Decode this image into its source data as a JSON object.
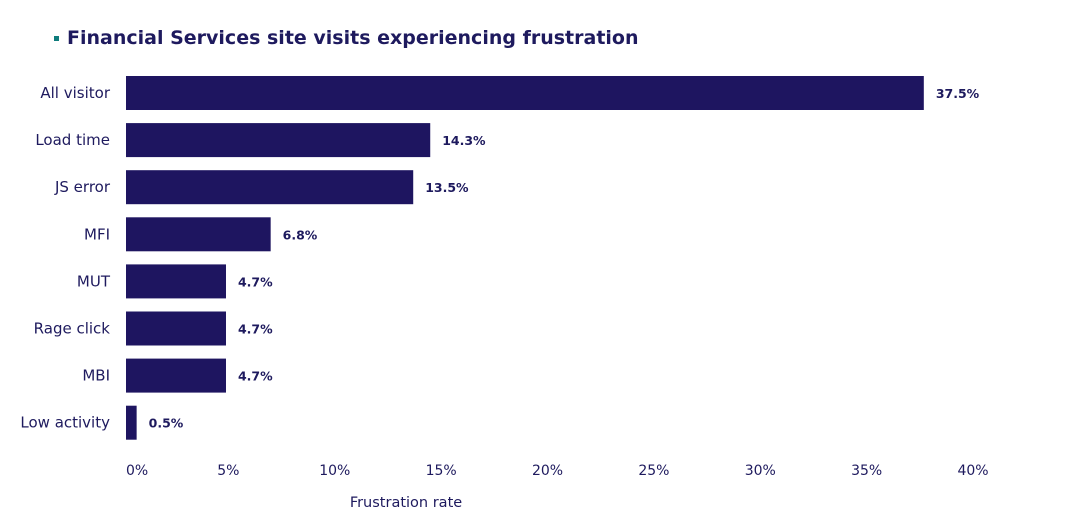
{
  "chart_data": {
    "type": "bar",
    "orientation": "horizontal",
    "title": "Financial Services site visits experiencing frustration",
    "categories": [
      "All visitor",
      "Load time",
      "JS error",
      "MFI",
      "MUT",
      "Rage click",
      "MBI",
      "Low activity"
    ],
    "values": [
      37.5,
      14.3,
      13.5,
      6.8,
      4.7,
      4.7,
      4.7,
      0.5
    ],
    "data_labels": [
      "37.5%",
      "14.3%",
      "13.5%",
      "6.8%",
      "4.7%",
      "4.7%",
      "4.7%",
      "0.5%"
    ],
    "xlabel": "Frustration rate",
    "ylabel": "",
    "xlim": [
      0,
      40
    ],
    "xticks": [
      "0%",
      "5%",
      "10%",
      "15%",
      "20%",
      "25%",
      "30%",
      "35%",
      "40%"
    ],
    "grid": false,
    "colors": {
      "bar": "#1e1560",
      "marker": "#0f7c7c",
      "text": "#1e1a5e"
    }
  }
}
